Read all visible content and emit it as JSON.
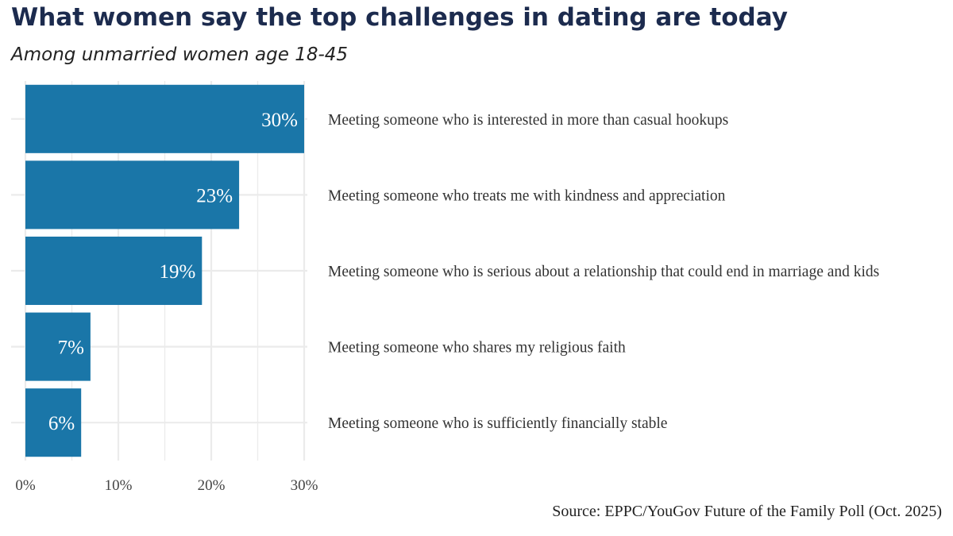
{
  "title": "What women say the top challenges in dating are today",
  "subtitle": "Among unmarried women age 18-45",
  "source": "Source: EPPC/YouGov Future of the Family Poll (Oct. 2025)",
  "colors": {
    "bar": "#1a76a8",
    "grid": "#ebebeb",
    "title": "#1c2b4e"
  },
  "chart_data": {
    "type": "bar",
    "orientation": "horizontal",
    "categories": [
      "Meeting someone who is interested in more than casual hookups",
      "Meeting someone who treats me with kindness and appreciation",
      "Meeting someone who is serious about a relationship that could end in marriage and kids",
      "Meeting someone who shares my religious faith",
      "Meeting someone who is sufficiently financially stable"
    ],
    "values": [
      30,
      23,
      19,
      7,
      6
    ],
    "value_labels": [
      "30%",
      "23%",
      "19%",
      "7%",
      "6%"
    ],
    "xlim": [
      0,
      30
    ],
    "xticks": [
      0,
      10,
      20,
      30
    ],
    "xtick_labels": [
      "0%",
      "10%",
      "20%",
      "30%"
    ],
    "xlabel": "",
    "ylabel": "",
    "grid": true,
    "legend": "none"
  }
}
